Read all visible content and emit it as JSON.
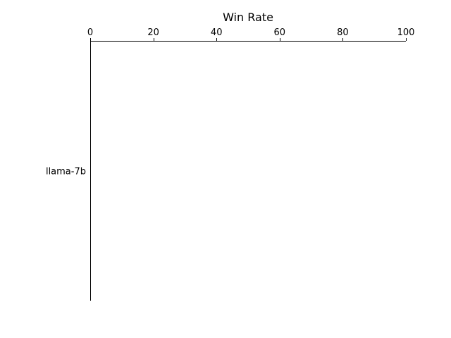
{
  "chart_data": {
    "type": "bar",
    "orientation": "horizontal",
    "categories": [
      "llama-7b"
    ],
    "series": [
      {
        "values": [
          0
        ]
      }
    ],
    "xlabel": "Win Rate",
    "x_axis_position": "top",
    "xlim": [
      0,
      100
    ],
    "xticks": [
      0,
      20,
      40,
      60,
      80,
      100
    ],
    "xtick_labels": [
      "0",
      "20",
      "40",
      "60",
      "80",
      "100"
    ],
    "grid": false,
    "legend": "none",
    "colors": {
      "axis": "#000000",
      "bar": "#1f77b4"
    }
  }
}
